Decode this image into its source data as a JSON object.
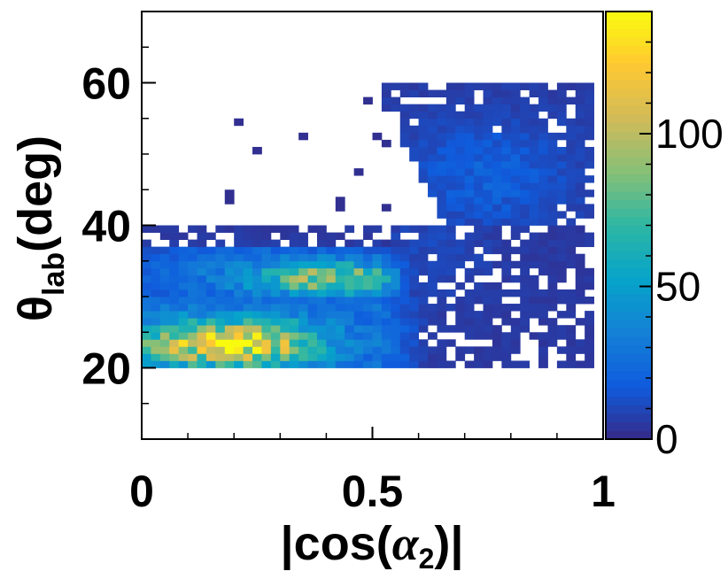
{
  "chart_data": {
    "type": "heatmap",
    "xlabel_parts": [
      "|cos(",
      "α",
      "2",
      ")|"
    ],
    "ylabel_parts": [
      "θ",
      "lab",
      "(deg)"
    ],
    "xlim": [
      0,
      1
    ],
    "ylim": [
      10,
      70
    ],
    "zlim": [
      0,
      140
    ],
    "x_ticks": [
      "0",
      "0.5",
      "1"
    ],
    "y_ticks": [
      "20",
      "40",
      "60"
    ],
    "z_ticks": [
      "0",
      "50",
      "100"
    ],
    "colormap": [
      "#352a87",
      "#0f5cdd",
      "#1481d6",
      "#06a4ca",
      "#2eb7a4",
      "#87bf77",
      "#d1bb59",
      "#fec832",
      "#f9fb0e"
    ],
    "bins": {
      "nx": 50,
      "ny": 40,
      "x_range": [
        0,
        1
      ],
      "y_range": [
        20,
        60
      ]
    },
    "density_features": {
      "hot_spots": [
        {
          "x": 0.22,
          "y": 23.5,
          "z": 135
        },
        {
          "x": 0.42,
          "y": 32.5,
          "z": 95
        },
        {
          "x": 0.08,
          "y": 23.0,
          "z": 90
        }
      ],
      "bands": [
        {
          "y_range": [
            20,
            30
          ],
          "x_range": [
            0,
            0.62
          ],
          "level": "high"
        },
        {
          "y_range": [
            30,
            40
          ],
          "x_range": [
            0,
            0.6
          ],
          "level": "medium"
        },
        {
          "y_range": [
            40,
            60
          ],
          "x_range": [
            0.5,
            0.98
          ],
          "level": "low"
        }
      ]
    }
  }
}
